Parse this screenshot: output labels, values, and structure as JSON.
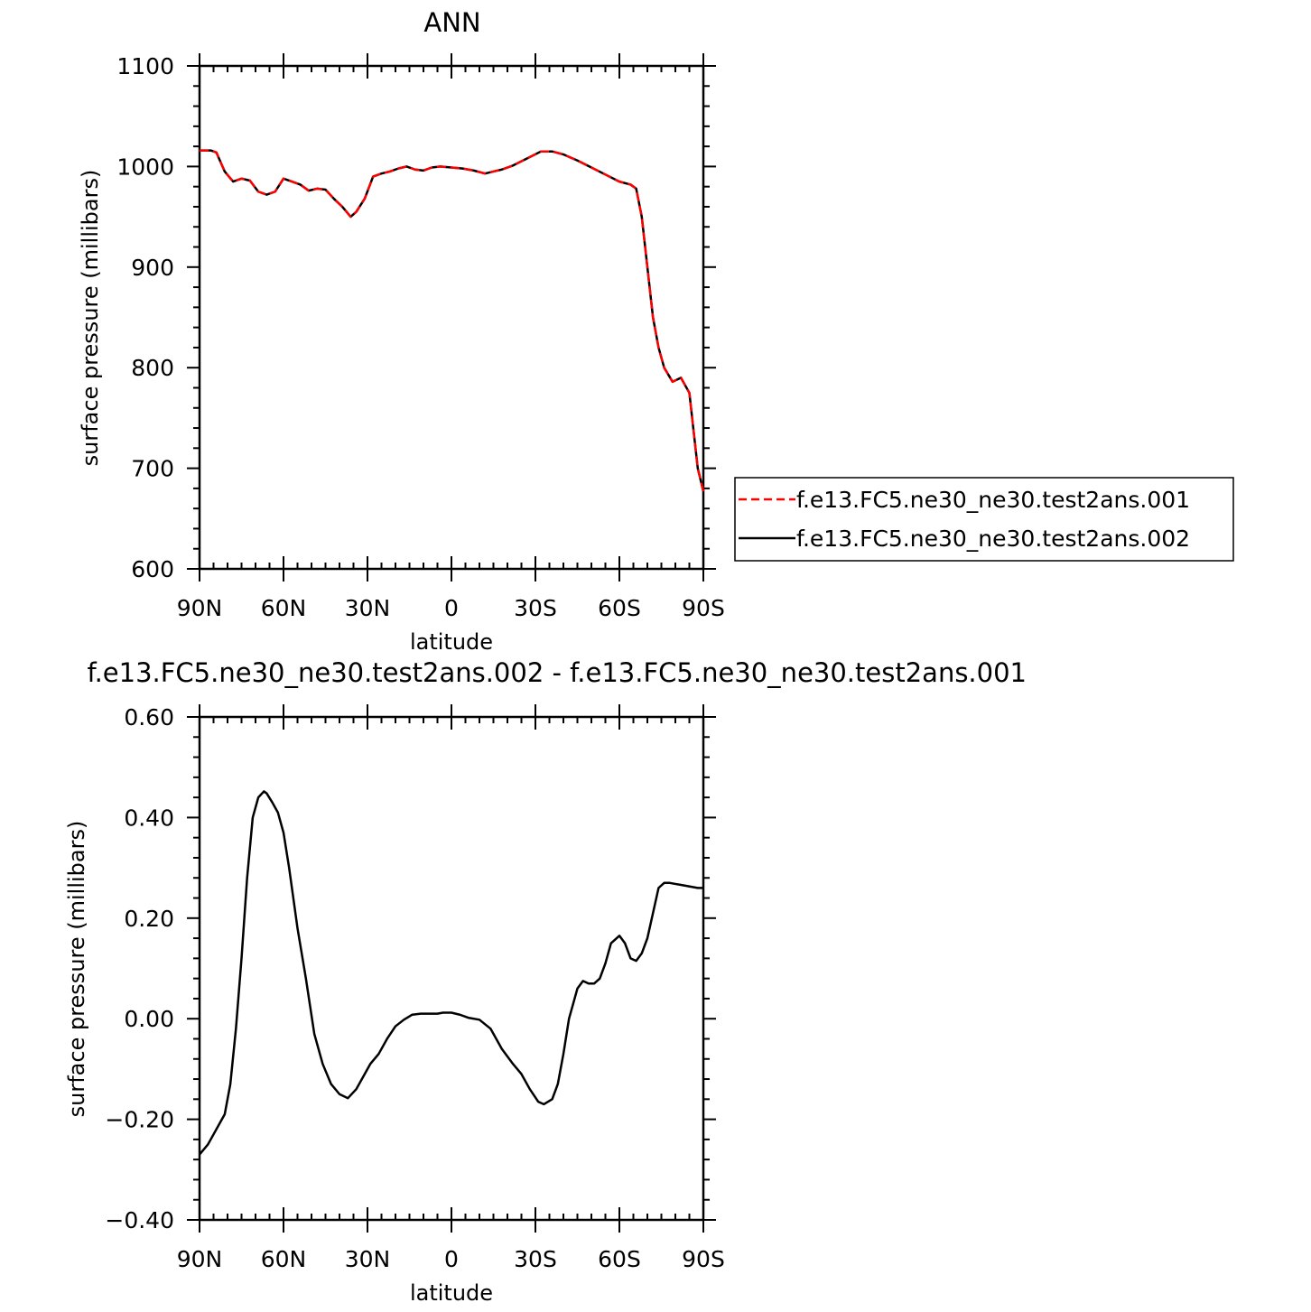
{
  "chart_data": [
    {
      "type": "line",
      "title": "ANN",
      "xlabel": "latitude",
      "ylabel": "surface pressure (millibars)",
      "ylim": [
        600,
        1100
      ],
      "xlim": [
        -90,
        90
      ],
      "x_direction": "north-to-south",
      "xticks": [
        {
          "value": -90,
          "label": "90N"
        },
        {
          "value": -60,
          "label": "60N"
        },
        {
          "value": -30,
          "label": "30N"
        },
        {
          "value": 0,
          "label": "0"
        },
        {
          "value": 30,
          "label": "30S"
        },
        {
          "value": 60,
          "label": "60S"
        },
        {
          "value": 90,
          "label": "90S"
        }
      ],
      "yticks": [
        {
          "value": 600,
          "label": "600"
        },
        {
          "value": 700,
          "label": "700"
        },
        {
          "value": 800,
          "label": "800"
        },
        {
          "value": 900,
          "label": "900"
        },
        {
          "value": 1000,
          "label": "1000"
        },
        {
          "value": 1100,
          "label": "1100"
        }
      ],
      "legend_position": "right",
      "series": [
        {
          "name": "f.e13.FC5.ne30_ne30.test2ans.001",
          "color": "#ff0000",
          "style": "dashed",
          "x": [
            -90,
            -86,
            -84,
            -81,
            -78,
            -75,
            -72,
            -69,
            -66,
            -63,
            -60,
            -57,
            -54,
            -51,
            -48,
            -45,
            -42,
            -39,
            -36,
            -34,
            -31,
            -28,
            -25,
            -22,
            -19,
            -16,
            -13,
            -10,
            -7,
            -4,
            0,
            4,
            8,
            12,
            15,
            18,
            22,
            27,
            32,
            36,
            40,
            45,
            50,
            55,
            60,
            64,
            66,
            68,
            70,
            72,
            74,
            76,
            79,
            82,
            85,
            88,
            90
          ],
          "y": [
            1016,
            1016,
            1014,
            995,
            985,
            988,
            986,
            975,
            972,
            975,
            988,
            985,
            982,
            976,
            978,
            977,
            968,
            960,
            950,
            955,
            968,
            990,
            993,
            995,
            998,
            1000,
            997,
            996,
            999,
            1000,
            999,
            998,
            996,
            993,
            995,
            997,
            1001,
            1008,
            1015,
            1015,
            1012,
            1006,
            999,
            992,
            985,
            982,
            978,
            950,
            900,
            850,
            820,
            800,
            786,
            790,
            775,
            700,
            677
          ]
        },
        {
          "name": "f.e13.FC5.ne30_ne30.test2ans.002",
          "color": "#000000",
          "style": "solid",
          "x": [
            -90,
            -86,
            -84,
            -81,
            -78,
            -75,
            -72,
            -69,
            -66,
            -63,
            -60,
            -57,
            -54,
            -51,
            -48,
            -45,
            -42,
            -39,
            -36,
            -34,
            -31,
            -28,
            -25,
            -22,
            -19,
            -16,
            -13,
            -10,
            -7,
            -4,
            0,
            4,
            8,
            12,
            15,
            18,
            22,
            27,
            32,
            36,
            40,
            45,
            50,
            55,
            60,
            64,
            66,
            68,
            70,
            72,
            74,
            76,
            79,
            82,
            85,
            88,
            90
          ],
          "y": [
            1016,
            1016,
            1014,
            995,
            985,
            988,
            986,
            975,
            972,
            975,
            988,
            985,
            982,
            976,
            978,
            977,
            968,
            960,
            950,
            955,
            968,
            990,
            993,
            995,
            998,
            1000,
            997,
            996,
            999,
            1000,
            999,
            998,
            996,
            993,
            995,
            997,
            1001,
            1008,
            1015,
            1015,
            1012,
            1006,
            999,
            992,
            985,
            982,
            978,
            950,
            900,
            850,
            820,
            800,
            786,
            790,
            775,
            700,
            677
          ]
        }
      ]
    },
    {
      "type": "line",
      "title": "f.e13.FC5.ne30_ne30.test2ans.002 - f.e13.FC5.ne30_ne30.test2ans.001",
      "xlabel": "latitude",
      "ylabel": "surface pressure (millibars)",
      "ylim": [
        -0.4,
        0.6
      ],
      "xlim": [
        -90,
        90
      ],
      "x_direction": "north-to-south",
      "xticks": [
        {
          "value": -90,
          "label": "90N"
        },
        {
          "value": -60,
          "label": "60N"
        },
        {
          "value": -30,
          "label": "30N"
        },
        {
          "value": 0,
          "label": "0"
        },
        {
          "value": 30,
          "label": "30S"
        },
        {
          "value": 60,
          "label": "60S"
        },
        {
          "value": 90,
          "label": "90S"
        }
      ],
      "yticks": [
        {
          "value": -0.4,
          "label": "−0.40"
        },
        {
          "value": -0.2,
          "label": "−0.20"
        },
        {
          "value": 0.0,
          "label": "0.00"
        },
        {
          "value": 0.2,
          "label": "0.20"
        },
        {
          "value": 0.4,
          "label": "0.40"
        },
        {
          "value": 0.6,
          "label": "0.60"
        }
      ],
      "series": [
        {
          "color": "#000000",
          "style": "solid",
          "x": [
            -90,
            -87,
            -85,
            -83,
            -81,
            -79,
            -77,
            -75,
            -73,
            -71,
            -69,
            -67,
            -66,
            -64,
            -62,
            -60,
            -58,
            -55,
            -52,
            -49,
            -46,
            -43,
            -40,
            -37,
            -34,
            -31,
            -29,
            -26,
            -23,
            -20,
            -17,
            -14,
            -11,
            -8,
            -5,
            -3,
            0,
            3,
            6,
            10,
            14,
            18,
            22,
            25,
            28,
            31,
            33,
            36,
            38,
            40,
            42,
            45,
            47,
            49,
            51,
            53,
            55,
            57,
            60,
            62,
            64,
            66,
            68,
            70,
            72,
            74,
            76,
            78,
            80,
            82,
            84,
            86,
            88,
            90
          ],
          "y": [
            -0.27,
            -0.25,
            -0.23,
            -0.21,
            -0.19,
            -0.13,
            -0.02,
            0.12,
            0.28,
            0.4,
            0.44,
            0.452,
            0.448,
            0.43,
            0.41,
            0.37,
            0.3,
            0.18,
            0.08,
            -0.03,
            -0.09,
            -0.13,
            -0.15,
            -0.158,
            -0.14,
            -0.11,
            -0.09,
            -0.07,
            -0.04,
            -0.015,
            -0.002,
            0.008,
            0.01,
            0.01,
            0.01,
            0.012,
            0.012,
            0.008,
            0.002,
            -0.002,
            -0.02,
            -0.06,
            -0.09,
            -0.11,
            -0.14,
            -0.165,
            -0.17,
            -0.16,
            -0.13,
            -0.07,
            0.0,
            0.06,
            0.075,
            0.07,
            0.07,
            0.08,
            0.11,
            0.15,
            0.165,
            0.15,
            0.12,
            0.115,
            0.13,
            0.16,
            0.21,
            0.26,
            0.27,
            0.27,
            0.268,
            0.266,
            0.264,
            0.262,
            0.26,
            0.26
          ]
        }
      ]
    }
  ]
}
